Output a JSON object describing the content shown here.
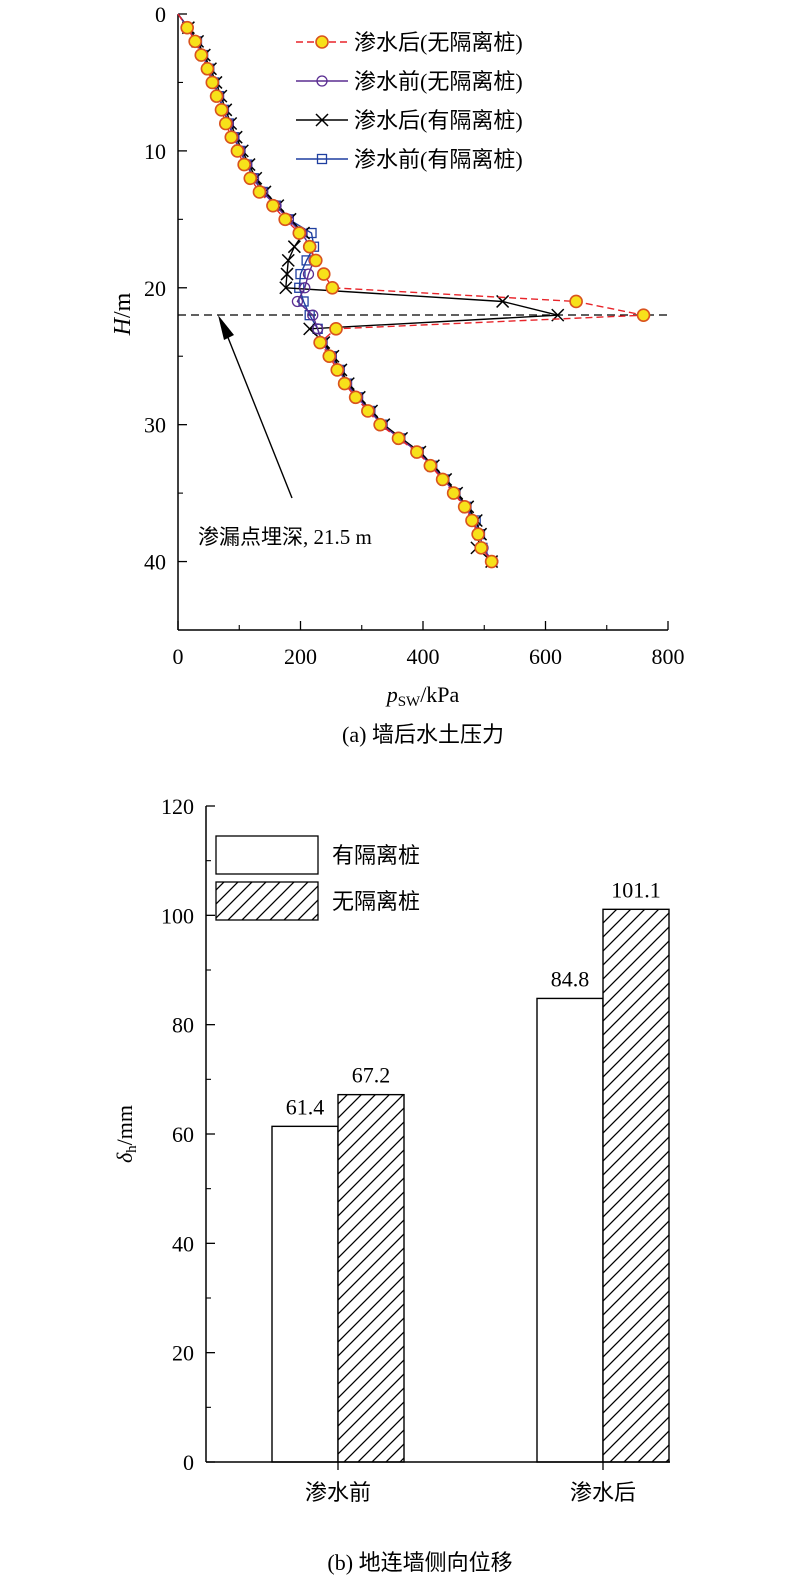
{
  "chart_data": [
    {
      "type": "line",
      "caption": "(a) 墙后水土压力",
      "xlabel_main": "p",
      "xlabel_sub": "SW",
      "xlabel_unit": "/kPa",
      "ylabel_main": "H",
      "ylabel_unit": "/m",
      "xlim": [
        0,
        800
      ],
      "ylim": [
        0,
        45
      ],
      "y_inverted": true,
      "xticks": [
        0,
        200,
        400,
        600,
        800
      ],
      "yticks": [
        0,
        10,
        20,
        30,
        40
      ],
      "legend_position": "top-right",
      "colors": {
        "after_no_pile": "#e8242a",
        "before_no_pile": "#5a2d91",
        "after_pile": "#000000",
        "before_pile": "#1f3fa0",
        "marker_fill": "#f7e11a",
        "marker_edge": "#d9531e"
      },
      "series": [
        {
          "name": "渗水后(无隔离桩)",
          "style": "dashed-circle-filled",
          "points": [
            [
              0,
              0
            ],
            [
              15,
              1
            ],
            [
              28,
              2
            ],
            [
              38,
              3
            ],
            [
              48,
              4
            ],
            [
              56,
              5
            ],
            [
              63,
              6
            ],
            [
              71,
              7
            ],
            [
              78,
              8
            ],
            [
              87,
              9
            ],
            [
              97,
              10
            ],
            [
              108,
              11
            ],
            [
              118,
              12
            ],
            [
              133,
              13
            ],
            [
              155,
              14
            ],
            [
              175,
              15
            ],
            [
              198,
              16
            ],
            [
              215,
              17
            ],
            [
              225,
              18
            ],
            [
              238,
              19
            ],
            [
              252,
              20
            ],
            [
              650,
              21
            ],
            [
              760,
              22
            ],
            [
              258,
              23
            ],
            [
              232,
              24
            ],
            [
              247,
              25
            ],
            [
              260,
              26
            ],
            [
              272,
              27
            ],
            [
              290,
              28
            ],
            [
              310,
              29
            ],
            [
              330,
              30
            ],
            [
              360,
              31
            ],
            [
              390,
              32
            ],
            [
              412,
              33
            ],
            [
              432,
              34
            ],
            [
              450,
              35
            ],
            [
              468,
              36
            ],
            [
              480,
              37
            ],
            [
              490,
              38
            ],
            [
              495,
              39
            ],
            [
              512,
              40
            ]
          ]
        },
        {
          "name": "渗水前(无隔离桩)",
          "style": "solid-circle-open",
          "points": [
            [
              0,
              0
            ],
            [
              16,
              1
            ],
            [
              30,
              2
            ],
            [
              40,
              3
            ],
            [
              50,
              4
            ],
            [
              58,
              5
            ],
            [
              66,
              6
            ],
            [
              74,
              7
            ],
            [
              82,
              8
            ],
            [
              91,
              9
            ],
            [
              101,
              10
            ],
            [
              112,
              11
            ],
            [
              123,
              12
            ],
            [
              138,
              13
            ],
            [
              160,
              14
            ],
            [
              180,
              15
            ],
            [
              202,
              16
            ],
            [
              216,
              17
            ],
            [
              222,
              18
            ],
            [
              213,
              19
            ],
            [
              207,
              20
            ],
            [
              195,
              21
            ],
            [
              220,
              22
            ],
            [
              228,
              23
            ],
            [
              235,
              24
            ],
            [
              250,
              25
            ],
            [
              263,
              26
            ],
            [
              275,
              27
            ],
            [
              293,
              28
            ],
            [
              313,
              29
            ],
            [
              333,
              30
            ],
            [
              362,
              31
            ],
            [
              392,
              32
            ],
            [
              414,
              33
            ],
            [
              434,
              34
            ],
            [
              452,
              35
            ],
            [
              470,
              36
            ],
            [
              482,
              37
            ],
            [
              492,
              38
            ],
            [
              498,
              39
            ],
            [
              514,
              40
            ]
          ]
        },
        {
          "name": "渗水后(有隔离桩)",
          "style": "solid-x",
          "points": [
            [
              0,
              0
            ],
            [
              17,
              1
            ],
            [
              32,
              2
            ],
            [
              43,
              3
            ],
            [
              53,
              4
            ],
            [
              62,
              5
            ],
            [
              70,
              6
            ],
            [
              78,
              7
            ],
            [
              86,
              8
            ],
            [
              95,
              9
            ],
            [
              105,
              10
            ],
            [
              116,
              11
            ],
            [
              127,
              12
            ],
            [
              142,
              13
            ],
            [
              163,
              14
            ],
            [
              183,
              15
            ],
            [
              205,
              16
            ],
            [
              190,
              17
            ],
            [
              180,
              18
            ],
            [
              178,
              19
            ],
            [
              176,
              20
            ],
            [
              530,
              21
            ],
            [
              620,
              22
            ],
            [
              215,
              23
            ],
            [
              238,
              24
            ],
            [
              253,
              25
            ],
            [
              266,
              26
            ],
            [
              278,
              27
            ],
            [
              296,
              28
            ],
            [
              316,
              29
            ],
            [
              336,
              30
            ],
            [
              365,
              31
            ],
            [
              395,
              32
            ],
            [
              417,
              33
            ],
            [
              437,
              34
            ],
            [
              455,
              35
            ],
            [
              473,
              36
            ],
            [
              487,
              37
            ],
            [
              494,
              38
            ],
            [
              488,
              39
            ],
            [
              512,
              40
            ]
          ]
        },
        {
          "name": "渗水前(有隔离桩)",
          "style": "solid-square-open",
          "points": [
            [
              0,
              0
            ],
            [
              16,
              1
            ],
            [
              31,
              2
            ],
            [
              41,
              3
            ],
            [
              51,
              4
            ],
            [
              59,
              5
            ],
            [
              67,
              6
            ],
            [
              75,
              7
            ],
            [
              83,
              8
            ],
            [
              92,
              9
            ],
            [
              102,
              10
            ],
            [
              113,
              11
            ],
            [
              124,
              12
            ],
            [
              139,
              13
            ],
            [
              160,
              14
            ],
            [
              181,
              15
            ],
            [
              218,
              16
            ],
            [
              222,
              17
            ],
            [
              210,
              18
            ],
            [
              200,
              19
            ],
            [
              198,
              20
            ],
            [
              205,
              21
            ],
            [
              215,
              22
            ],
            [
              228,
              23
            ],
            [
              236,
              24
            ],
            [
              251,
              25
            ],
            [
              264,
              26
            ],
            [
              276,
              27
            ],
            [
              294,
              28
            ],
            [
              314,
              29
            ],
            [
              334,
              30
            ],
            [
              363,
              31
            ],
            [
              393,
              32
            ],
            [
              415,
              33
            ],
            [
              435,
              34
            ],
            [
              453,
              35
            ],
            [
              471,
              36
            ],
            [
              486,
              37
            ],
            [
              493,
              38
            ],
            [
              497,
              39
            ],
            [
              513,
              40
            ]
          ]
        }
      ],
      "reference_line_y": 21.5,
      "annotation": {
        "text": "渗漏点埋深, 21.5 m",
        "arrow_to": [
          62,
          21.5
        ]
      }
    },
    {
      "type": "bar",
      "caption": "(b) 地连墙侧向位移",
      "ylabel_main": "δ",
      "ylabel_sub": "h",
      "ylabel_unit": "/mm",
      "ylim": [
        0,
        120
      ],
      "yticks": [
        0,
        20,
        40,
        60,
        80,
        100,
        120
      ],
      "categories": [
        "渗水前",
        "渗水后"
      ],
      "legend_position": "top-left",
      "series": [
        {
          "name": "有隔离桩",
          "pattern": "plain",
          "values": [
            61.4,
            84.8
          ],
          "labels": [
            "61.4",
            "84.8"
          ]
        },
        {
          "name": "无隔离桩",
          "pattern": "hatched",
          "values": [
            67.2,
            101.1
          ],
          "labels": [
            "67.2",
            "101.1"
          ]
        }
      ]
    }
  ]
}
